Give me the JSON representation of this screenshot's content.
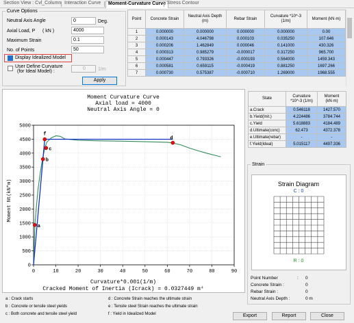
{
  "tabs": [
    "Section View : Cvl_Column",
    "Interaction Curve",
    "Moment-Curvature Curve",
    "Stress Contour"
  ],
  "active_tab": 2,
  "options": {
    "title": "Curve Options",
    "angle_label": "Neutral Axis Angle",
    "angle_value": "0",
    "angle_unit": "Deg.",
    "load_label": "Axial Load, P",
    "load_unit": "( kN )",
    "load_value": "4000",
    "strain_label": "Maximum Strain",
    "strain_value": "0.1",
    "points_label": "No. of Points",
    "points_value": "50",
    "display_idealized": "Display Idealized Model",
    "user_define": "User Define Curvature",
    "user_define_sub": "(for Ideal  Model) :",
    "user_value": "0",
    "user_unit": "1/m",
    "apply": "Apply"
  },
  "points_table": {
    "headers": [
      "Point",
      "Concrete Strain",
      "Neutral Axis Depth (m)",
      "Rebar Strain",
      "Curvature *10^-3 (1/m)",
      "Moment (kN·m)"
    ],
    "rows": [
      [
        "1",
        "0.000000",
        "0.000000",
        "0.000000",
        "0.000000",
        "0.00"
      ],
      [
        "2",
        "0.000143",
        "4.046798",
        "0.000103",
        "0.035250",
        "107.646"
      ],
      [
        "3",
        "0.000206",
        "1.462849",
        "0.000046",
        "0.141000",
        "430.326"
      ],
      [
        "4",
        "0.000313",
        "0.985279",
        "-0.000017",
        "0.317250",
        "965.700"
      ],
      [
        "5",
        "0.000447",
        "0.793326",
        "-0.000193",
        "0.564000",
        "1459.343"
      ],
      [
        "6",
        "0.000581",
        "0.659115",
        "-0.000419",
        "0.881250",
        "1697.266"
      ],
      [
        "7",
        "0.000730",
        "0.575387",
        "-0.000710",
        "1.269000",
        "1968.555"
      ]
    ]
  },
  "chart_data": {
    "type": "line",
    "title": "Moment Curvature Curve",
    "subtitle1": "Axial load = 4000",
    "subtitle2": "Neutral Axis Angle = 0",
    "xlabel": "Curvature*0.001(1/m)",
    "ylabel": "Moment Nt(kN*m)",
    "xlim": [
      0,
      90
    ],
    "ylim": [
      0,
      5000
    ],
    "xticks": [
      "0",
      "10",
      "20",
      "30",
      "40",
      "50",
      "60",
      "70",
      "80",
      "90"
    ],
    "yticks": [
      "0",
      "500",
      "1000",
      "1500",
      "2000",
      "2500",
      "3000",
      "3500",
      "4000",
      "4500",
      "5000"
    ],
    "cracked_text": "Cracked Moment of Inertia (Icrack) = 0.0327449 m⁴",
    "series": [
      {
        "color": "#2e8b57",
        "x": [
          0,
          0.6,
          1.3,
          2,
          3,
          4,
          5,
          6,
          8,
          10,
          12,
          14,
          20,
          30,
          40,
          50,
          60,
          62,
          66,
          70,
          74,
          78,
          82,
          84
        ],
        "y": [
          0,
          1430,
          2100,
          2700,
          3300,
          3780,
          4180,
          4400,
          4550,
          4620,
          4600,
          4510,
          4460,
          4440,
          4430,
          4410,
          4390,
          4370,
          4300,
          4180,
          4080,
          3990,
          3910,
          3870
        ]
      },
      {
        "color": "#1030c8",
        "x": [
          0,
          5.015,
          62.473
        ],
        "y": [
          0,
          4497.336,
          4497.336
        ]
      }
    ],
    "markers": [
      {
        "id": "a",
        "x": 0.546,
        "y": 1427.57
      },
      {
        "id": "b",
        "x": 4.224,
        "y": 3784.744
      },
      {
        "id": "c",
        "x": 5.619,
        "y": 4184.489
      },
      {
        "id": "d",
        "x": 62.473,
        "y": 4372.378
      },
      {
        "id": "f",
        "x": 5.015,
        "y": 4497.336
      }
    ]
  },
  "legend": [
    "a : Crack starts",
    "b : Concrete or tensile steel yields",
    "c : Both concrete and tensile steel yield",
    "d : Concrete Strain reaches the ultimate strain",
    "e : Tensile steel Strain reaches the ultimate strain",
    "f : Yield in Idealized Model"
  ],
  "state_table": {
    "headers": [
      "State",
      "Curvature *10^-3 (1/m)",
      "Moment (kN·m)"
    ],
    "rows": [
      [
        "a.Crack",
        "0.546118",
        "1427.570"
      ],
      [
        "b.Yield(Init.)",
        "4.224486",
        "3784.744"
      ],
      [
        "c.Yield",
        "5.618883",
        "4184.489"
      ],
      [
        "d.Ultimate(conc)",
        "62.473",
        "4372.378"
      ],
      [
        "e.Ultimate(rebar)",
        "-",
        "-"
      ],
      [
        "f.Yield(Ideal)",
        "5.015117",
        "4497.336"
      ]
    ]
  },
  "strain": {
    "group_title": "Strain",
    "diagram_title": "Strain Diagram",
    "c_label": "C : 0",
    "r_label": "R : 0",
    "c_color": "#1a3fd6",
    "r_color": "#1a9a1a",
    "info": [
      {
        "label": "Point Number",
        "colon": ":",
        "value": "0"
      },
      {
        "label": "Concrete Strain :",
        "colon": "",
        "value": "0"
      },
      {
        "label": "Rebar Strain :",
        "colon": "",
        "value": "0"
      },
      {
        "label": "Neutral Axis Depth :",
        "colon": "",
        "value": "0 m"
      }
    ]
  },
  "buttons": {
    "export": "Export",
    "report": "Report",
    "close": "Close"
  }
}
